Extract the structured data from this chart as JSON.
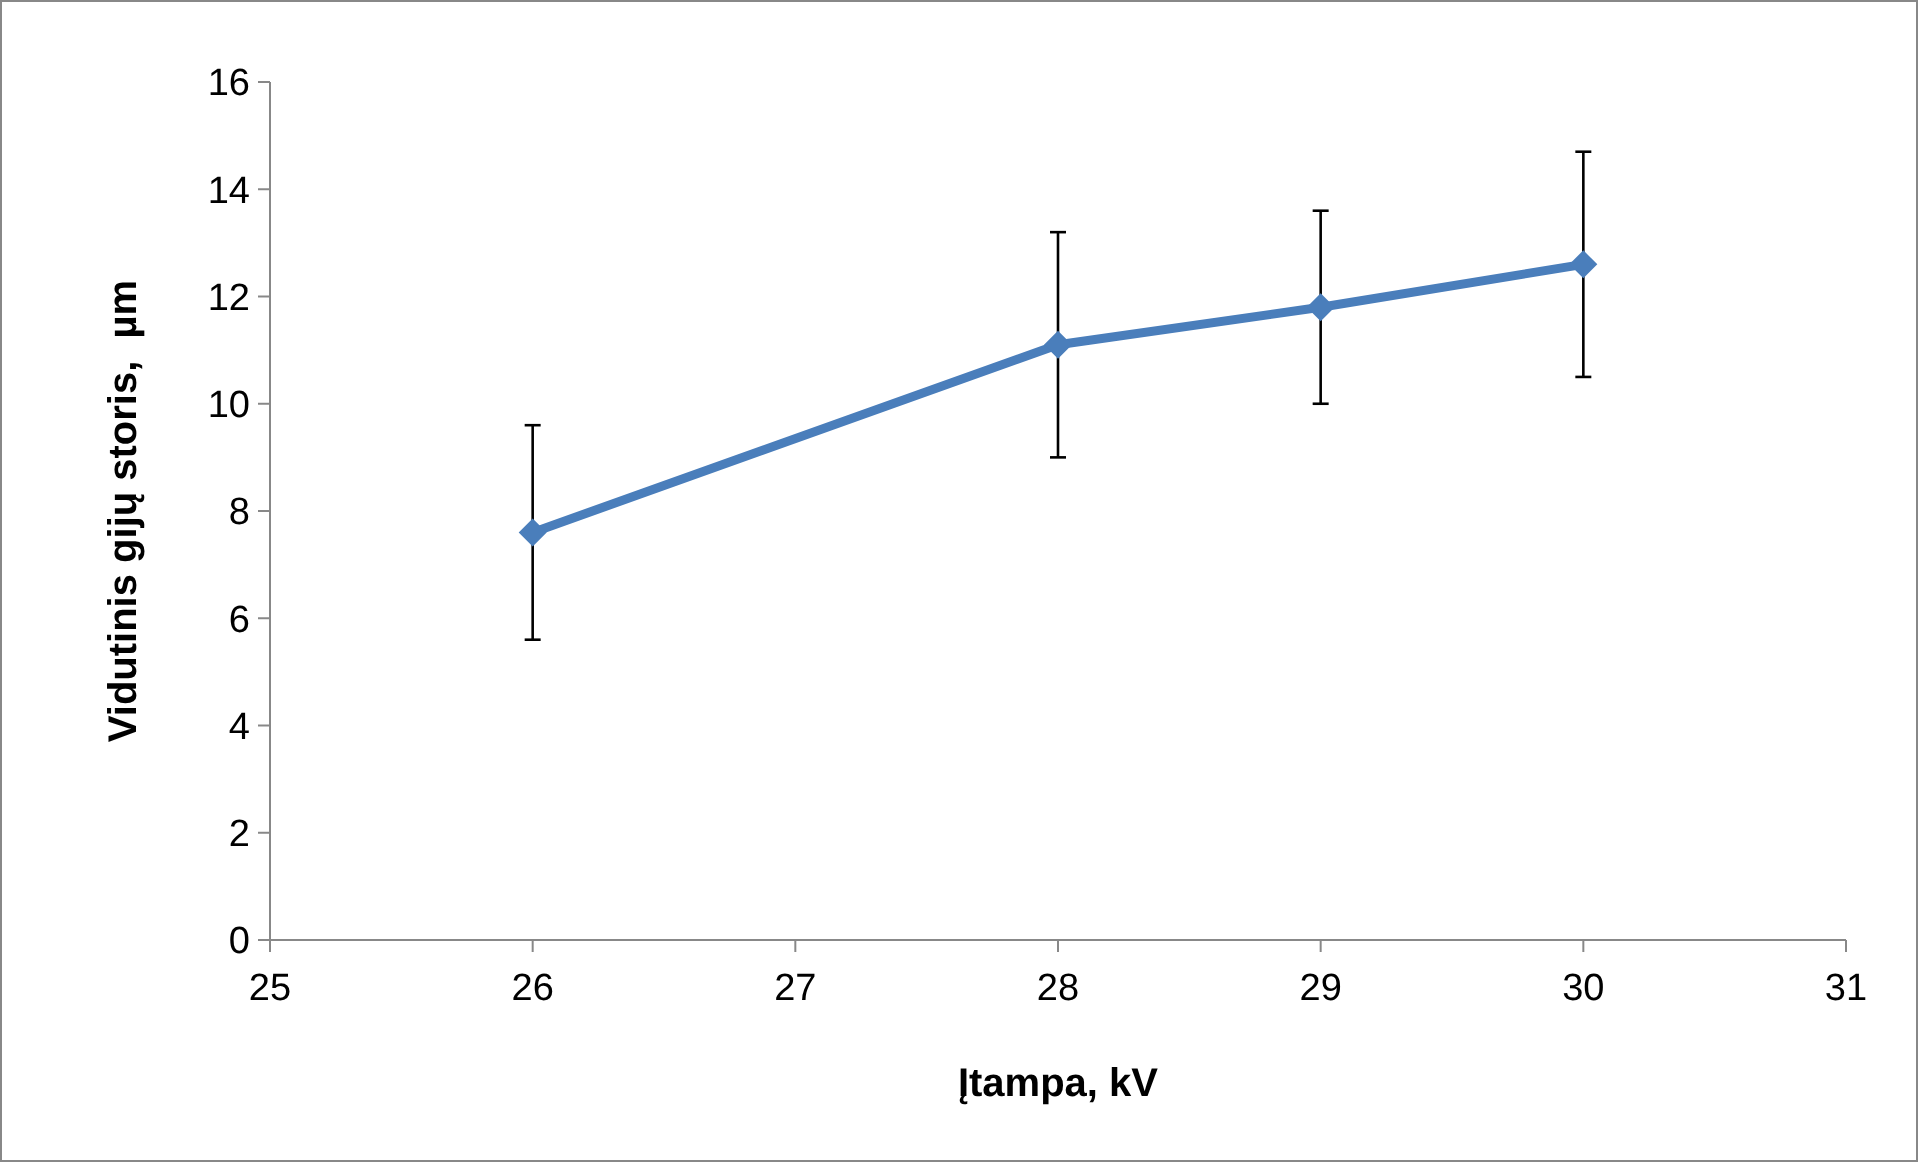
{
  "chart_data": {
    "type": "line",
    "xlabel": "Įtampa, kV",
    "ylabel": "Vidutinis gijų storis,  µm",
    "x": [
      26,
      28,
      29,
      30
    ],
    "series": [
      {
        "color": "#4a7ebb",
        "values": [
          7.6,
          11.1,
          11.8,
          12.6
        ],
        "errors": [
          2.0,
          2.1,
          1.8,
          2.1
        ]
      }
    ],
    "xlim": [
      25,
      31
    ],
    "xticks": [
      25,
      26,
      27,
      28,
      29,
      30,
      31
    ],
    "ylim": [
      0,
      16
    ],
    "yticks": [
      0,
      2,
      4,
      6,
      8,
      10,
      12,
      14,
      16
    ],
    "marker": "diamond",
    "line_style": "solid"
  }
}
